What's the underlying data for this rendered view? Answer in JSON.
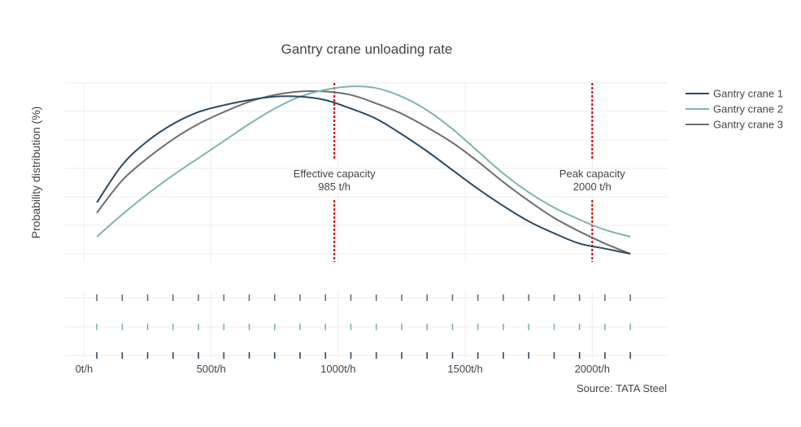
{
  "chart_data": {
    "type": "line",
    "title": "Gantry crane unloading rate",
    "ylabel": "Probability distribution (%)",
    "xlabel": "",
    "source": "Source: TATA Steel",
    "x_ticks": [
      {
        "value": 0,
        "label": "0t/h"
      },
      {
        "value": 500,
        "label": "500t/h"
      },
      {
        "value": 1000,
        "label": "1000t/h"
      },
      {
        "value": 1500,
        "label": "1500t/h"
      },
      {
        "value": 2000,
        "label": "2000t/h"
      }
    ],
    "xlim": [
      -75,
      2300
    ],
    "ylim": [
      0,
      1.0
    ],
    "grid": true,
    "legend_position": "right",
    "series": [
      {
        "name": "Gantry crane 3",
        "color": "#6e6e6e",
        "x": [
          50,
          150,
          250,
          350,
          450,
          550,
          650,
          750,
          850,
          950,
          1050,
          1150,
          1250,
          1350,
          1450,
          1550,
          1650,
          1750,
          1850,
          1950,
          2050,
          2150
        ],
        "y": [
          0.24,
          0.43,
          0.56,
          0.67,
          0.76,
          0.83,
          0.89,
          0.93,
          0.95,
          0.95,
          0.93,
          0.88,
          0.82,
          0.74,
          0.65,
          0.54,
          0.42,
          0.31,
          0.21,
          0.13,
          0.06,
          0.0
        ],
        "rug": [
          50,
          150,
          250,
          350,
          450,
          550,
          650,
          750,
          850,
          950,
          1050,
          1150,
          1250,
          1350,
          1450,
          1550,
          1650,
          1750,
          1850,
          1950,
          2050,
          2150
        ]
      },
      {
        "name": "Gantry crane 2",
        "color": "#7fb3b3",
        "x": [
          50,
          150,
          250,
          350,
          450,
          550,
          650,
          750,
          850,
          950,
          1050,
          1150,
          1250,
          1350,
          1450,
          1550,
          1650,
          1750,
          1850,
          1950,
          2050,
          2150
        ],
        "y": [
          0.1,
          0.23,
          0.35,
          0.46,
          0.56,
          0.66,
          0.76,
          0.85,
          0.92,
          0.96,
          0.98,
          0.97,
          0.92,
          0.84,
          0.73,
          0.6,
          0.47,
          0.36,
          0.27,
          0.2,
          0.14,
          0.1
        ],
        "rug": [
          50,
          150,
          250,
          350,
          450,
          550,
          650,
          750,
          850,
          950,
          1050,
          1150,
          1250,
          1350,
          1450,
          1550,
          1650,
          1750,
          1850,
          1950,
          2050,
          2150
        ]
      },
      {
        "name": "Gantry crane 1",
        "color": "#2c4a63",
        "x": [
          50,
          150,
          250,
          350,
          450,
          550,
          650,
          750,
          850,
          950,
          1050,
          1150,
          1250,
          1350,
          1450,
          1550,
          1650,
          1750,
          1850,
          1950,
          2050,
          2150
        ],
        "y": [
          0.3,
          0.52,
          0.66,
          0.76,
          0.83,
          0.87,
          0.9,
          0.92,
          0.92,
          0.9,
          0.85,
          0.79,
          0.7,
          0.6,
          0.49,
          0.38,
          0.28,
          0.19,
          0.12,
          0.06,
          0.03,
          0.0
        ],
        "rug": [
          50,
          150,
          250,
          350,
          450,
          550,
          650,
          750,
          850,
          950,
          1050,
          1150,
          1250,
          1350,
          1450,
          1550,
          1650,
          1750,
          1850,
          1950,
          2050,
          2150
        ]
      }
    ],
    "annotations": [
      {
        "x": 985,
        "line1": "Effective capacity",
        "line2": "985 t/h",
        "color": "#cc0000"
      },
      {
        "x": 2000,
        "line1": "Peak capacity",
        "line2": "2000 t/h",
        "color": "#cc0000"
      }
    ]
  }
}
